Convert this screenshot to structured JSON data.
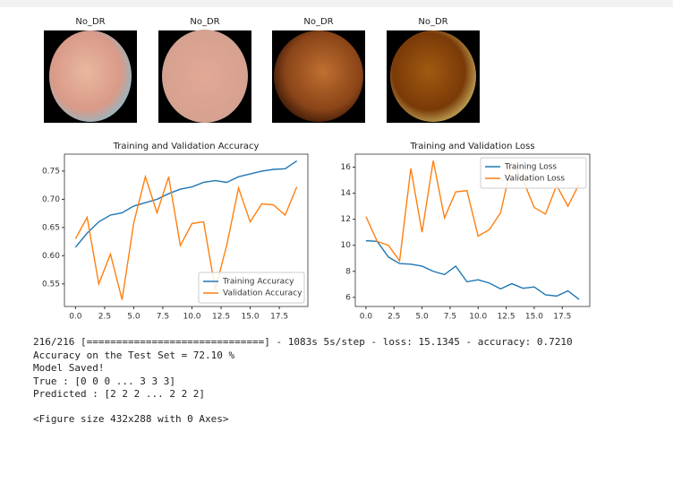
{
  "images": [
    {
      "title": "No_DR"
    },
    {
      "title": "No_DR"
    },
    {
      "title": "No_DR"
    },
    {
      "title": "No_DR"
    }
  ],
  "chart_data": [
    {
      "type": "line",
      "title": "Training and Validation Accuracy",
      "x": [
        0,
        1,
        2,
        3,
        4,
        5,
        6,
        7,
        8,
        9,
        10,
        11,
        12,
        13,
        14,
        15,
        16,
        17,
        18,
        19
      ],
      "series": [
        {
          "name": "Training Accuracy",
          "color": "#1f77b4",
          "values": [
            0.615,
            0.64,
            0.66,
            0.672,
            0.676,
            0.688,
            0.694,
            0.7,
            0.71,
            0.718,
            0.722,
            0.73,
            0.733,
            0.73,
            0.74,
            0.745,
            0.75,
            0.753,
            0.754,
            0.768
          ]
        },
        {
          "name": "Validation Accuracy",
          "color": "#ff7f0e",
          "values": [
            0.63,
            0.668,
            0.55,
            0.603,
            0.522,
            0.658,
            0.74,
            0.676,
            0.74,
            0.618,
            0.657,
            0.66,
            0.54,
            0.62,
            0.72,
            0.66,
            0.692,
            0.69,
            0.672,
            0.722
          ]
        }
      ],
      "xlim": [
        -0.95,
        19.95
      ],
      "xticks": [
        {
          "value": 0,
          "label": "0.0"
        },
        2.5,
        {
          "value": 5,
          "label": "5.0"
        },
        7.5,
        {
          "value": 10,
          "label": "10.0"
        },
        12.5,
        {
          "value": 15,
          "label": "15.0"
        },
        17.5
      ],
      "ylim": [
        0.51,
        0.78
      ],
      "yticks": [
        0.55,
        {
          "value": 0.6,
          "label": "0.60"
        },
        0.65,
        {
          "value": 0.7,
          "label": "0.70"
        },
        0.75
      ],
      "legend": "lower right"
    },
    {
      "type": "line",
      "title": "Training and Validation Loss",
      "x": [
        0,
        1,
        2,
        3,
        4,
        5,
        6,
        7,
        8,
        9,
        10,
        11,
        12,
        13,
        14,
        15,
        16,
        17,
        18,
        19
      ],
      "series": [
        {
          "name": "Training Loss",
          "color": "#1f77b4",
          "values": [
            10.35,
            10.3,
            9.1,
            8.6,
            8.55,
            8.4,
            8.0,
            7.75,
            8.4,
            7.2,
            7.35,
            7.1,
            6.65,
            7.05,
            6.7,
            6.8,
            6.2,
            6.1,
            6.5,
            5.85
          ]
        },
        {
          "name": "Validation Loss",
          "color": "#ff7f0e",
          "values": [
            12.2,
            10.3,
            10.0,
            8.8,
            15.9,
            11.0,
            16.5,
            12.1,
            14.1,
            14.2,
            10.7,
            11.2,
            12.5,
            16.3,
            15.0,
            12.9,
            12.4,
            14.6,
            13.0,
            14.7
          ]
        }
      ],
      "xlim": [
        -0.95,
        19.95
      ],
      "xticks": [
        {
          "value": 0,
          "label": "0.0"
        },
        2.5,
        {
          "value": 5,
          "label": "5.0"
        },
        7.5,
        {
          "value": 10,
          "label": "10.0"
        },
        12.5,
        {
          "value": 15,
          "label": "15.0"
        },
        17.5
      ],
      "ylim": [
        5.3,
        17.0
      ],
      "yticks": [
        6,
        8,
        10,
        12,
        14,
        16
      ],
      "legend": "upper right"
    }
  ],
  "output": [
    "216/216 [==============================] - 1083s 5s/step - loss: 15.1345 - accuracy: 0.7210",
    "Accuracy on the Test Set = 72.10 %",
    "Model Saved!",
    "True :  [0 0 0 ... 3 3 3]",
    "Predicted :  [2 2 2 ... 2 2 2]",
    "<Figure size 432x288 with 0 Axes>"
  ]
}
